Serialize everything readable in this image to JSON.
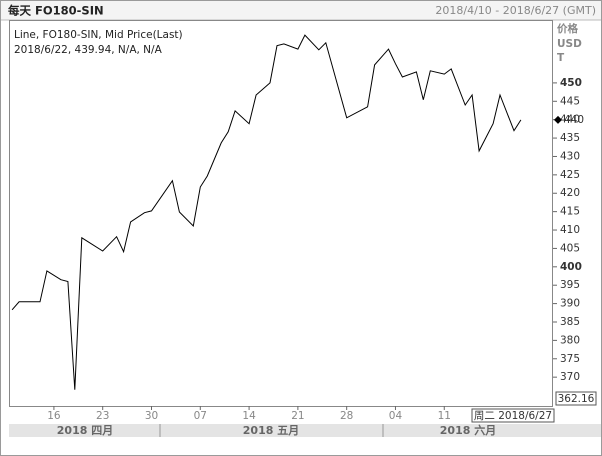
{
  "chart_data": {
    "type": "line",
    "title": "每天 FO180-SIN",
    "date_range": "2018/4/10 - 2018/6/27 (GMT)",
    "legend_lines": [
      "Line, FO180-SIN, Mid Price(Last)",
      "2018/6/22, 439.94, N/A, N/A"
    ],
    "y_axis_label": [
      "价格",
      "USD",
      "T"
    ],
    "series": [
      {
        "name": "FO180-SIN",
        "color": "#000000",
        "x": [
          0,
          1,
          4,
          5,
          7,
          8,
          9,
          10,
          13,
          15,
          16,
          17,
          19,
          20,
          23,
          24,
          26,
          27,
          28,
          30,
          31,
          32,
          34,
          35,
          37,
          38,
          39,
          41,
          42,
          44,
          45,
          48,
          51,
          52,
          54,
          55,
          56,
          58,
          59,
          60,
          62,
          63,
          65,
          66,
          67,
          69,
          70,
          72,
          73
        ],
        "values": [
          388.3,
          390.5,
          390.5,
          398.9,
          396.5,
          396,
          366.6,
          407.9,
          404.3,
          408.2,
          404.1,
          412.2,
          414.7,
          415.2,
          423.4,
          414.9,
          411.1,
          421.7,
          424.7,
          433.7,
          436.7,
          442.4,
          438.9,
          446.7,
          450,
          460.1,
          460.6,
          459.2,
          463,
          459,
          460.9,
          440.5,
          443.5,
          454.9,
          459.2,
          455.2,
          451.6,
          453,
          445.4,
          453.3,
          452.4,
          453.8,
          444,
          446.7,
          431.5,
          438.9,
          446.7,
          437,
          439.94
        ]
      }
    ],
    "last_value_label": "440",
    "cursor_y_label": "362.16",
    "cursor_x_label": "周二 2018/6/27",
    "months": [
      "2018 四月",
      "2018 五月",
      "2018 六月"
    ],
    "xlim": [
      -0.3,
      77.6
    ],
    "xticks": [
      {
        "value": 6,
        "label": "16"
      },
      {
        "value": 13,
        "label": "23"
      },
      {
        "value": 20,
        "label": "30"
      },
      {
        "value": 27,
        "label": "07"
      },
      {
        "value": 34,
        "label": "14"
      },
      {
        "value": 41,
        "label": "21"
      },
      {
        "value": 48,
        "label": "28"
      },
      {
        "value": 55,
        "label": "04"
      },
      {
        "value": 62,
        "label": "11"
      }
    ],
    "ylim": [
      362.16,
      467.1
    ],
    "yticks": [
      370,
      375,
      380,
      385,
      390,
      395,
      400,
      405,
      410,
      415,
      420,
      425,
      430,
      435,
      440,
      445,
      450
    ]
  }
}
